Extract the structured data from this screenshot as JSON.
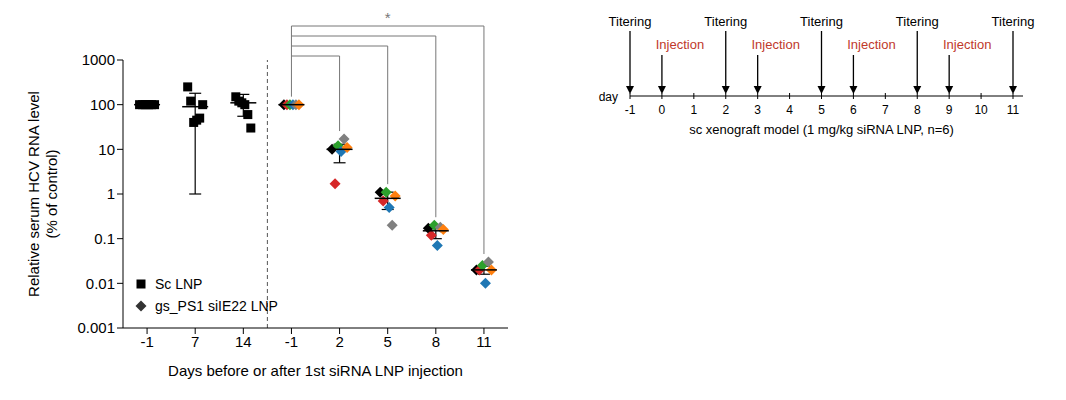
{
  "chart_data": {
    "type": "scatter",
    "ylabel": "Relative serum HCV RNA level\n(% of control)",
    "xlabel": "Days before or after 1st siRNA LNP injection",
    "categories": [
      "-1",
      "7",
      "14",
      "-1",
      "2",
      "5",
      "8",
      "11"
    ],
    "log": "y",
    "ylim": [
      0.001,
      1000
    ],
    "yticks": [
      0.001,
      0.01,
      0.1,
      1,
      10,
      100,
      1000
    ],
    "legend": "lower left",
    "series": [
      {
        "name": "Sc LNP",
        "color": "#000000",
        "marker": "square",
        "values": [
          [
            100,
            100,
            100,
            100,
            100,
            100
          ],
          [
            250,
            120,
            40,
            45,
            50,
            100
          ],
          [
            150,
            120,
            110,
            100,
            60,
            30
          ],
          null,
          null,
          null,
          null,
          null
        ],
        "mean": [
          100,
          90,
          110,
          null,
          null,
          null,
          null,
          null
        ],
        "error_bars": [
          [
            100,
            100
          ],
          [
            1,
            180
          ],
          [
            55,
            170
          ],
          null,
          null,
          null,
          null,
          null
        ]
      },
      {
        "name": "gs_PS1 siIE22 LNP",
        "color": "#333333",
        "marker": "diamond",
        "colors": [
          "#000000",
          "#d62728",
          "#2ca02c",
          "#1f77b4",
          "#808080",
          "#ff7f0e"
        ],
        "values": [
          null,
          null,
          null,
          [
            100,
            100,
            100,
            100,
            100,
            100
          ],
          [
            10,
            1.7,
            12,
            9,
            17,
            11
          ],
          [
            1.1,
            0.7,
            1.1,
            0.5,
            0.2,
            0.9
          ],
          [
            0.17,
            0.12,
            0.2,
            0.07,
            0.18,
            0.16
          ],
          [
            0.02,
            0.02,
            0.025,
            0.01,
            0.03,
            0.02
          ]
        ],
        "mean": [
          null,
          null,
          null,
          100,
          10,
          0.8,
          0.15,
          0.02
        ],
        "error_bars": [
          null,
          null,
          null,
          [
            100,
            100
          ],
          [
            5,
            13
          ],
          [
            0.45,
            1.1
          ],
          [
            0.1,
            0.2
          ],
          [
            0.016,
            0.024
          ]
        ]
      }
    ],
    "annotations": [
      {
        "text": "*",
        "from": 3,
        "to": [
          4,
          5,
          6,
          7
        ]
      }
    ]
  },
  "timeline": {
    "axis_label": "day",
    "days": [
      -1,
      0,
      1,
      2,
      3,
      4,
      5,
      6,
      7,
      8,
      9,
      10,
      11
    ],
    "titering": {
      "label": "Titering",
      "days": [
        -1,
        2,
        5,
        8,
        11
      ]
    },
    "injection": {
      "label": "Injection",
      "color": "#c0392b",
      "days": [
        0,
        3,
        6,
        9
      ]
    },
    "caption": "sc xenograft model (1 mg/kg siRNA LNP, n=6)"
  }
}
